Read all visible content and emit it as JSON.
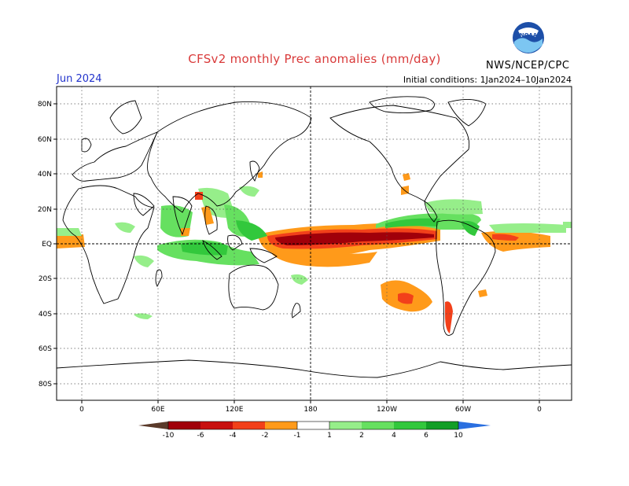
{
  "header": {
    "title": "CFSv2 monthly Prec anomalies (mm/day)",
    "month": "Jun 2024",
    "initial_conditions": "Initial conditions: 1Jan2024–10Jan2024",
    "agency": "NWS/NCEP/CPC",
    "logo_text": "NOAA"
  },
  "axes": {
    "lat_labels": [
      "80N",
      "60N",
      "40N",
      "20N",
      "EQ",
      "20S",
      "40S",
      "60S",
      "80S"
    ],
    "lon_labels": [
      "0",
      "60E",
      "120E",
      "180",
      "120W",
      "60W",
      "0"
    ]
  },
  "colorbar": {
    "labels": [
      "-10",
      "-6",
      "-4",
      "-2",
      "-1",
      "1",
      "2",
      "4",
      "6",
      "10"
    ],
    "colors": {
      "lt_neg10": "#5a3a2a",
      "neg10_neg6": "#a0000a",
      "neg6_neg4": "#c8100f",
      "neg4_neg2": "#f2401a",
      "neg2_neg1": "#ff9a1a",
      "neutral": "#ffffff",
      "pos1_pos2": "#96ee8a",
      "pos2_pos4": "#66e060",
      "pos4_pos6": "#32c83c",
      "pos6_pos10": "#129e26",
      "gt_pos10": "#2a6fe0"
    }
  }
}
